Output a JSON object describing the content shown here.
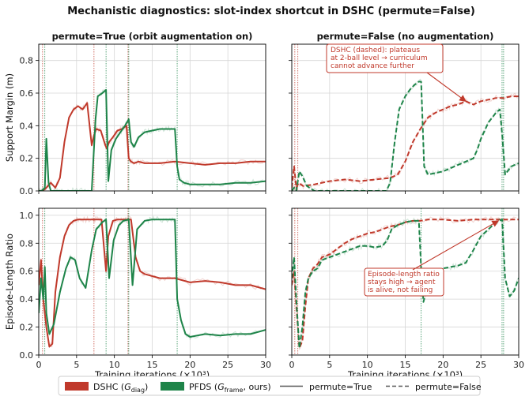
{
  "figure": {
    "suptitle": "Mechanistic diagnostics: slot-index shortcut in DSHC (permute=False)"
  },
  "colors": {
    "dshc": "#c0392b",
    "pfds": "#1e8449"
  },
  "legend": {
    "dshc_name": "DSHC (",
    "dshc_sym": "G",
    "dshc_sub": "diag",
    "dshc_tail": ")",
    "pfds_name": "PFDS (",
    "pfds_sym": "G",
    "pfds_sub": "frame",
    "pfds_tail": ", ours)",
    "solid_label": "permute=True",
    "dashed_label": "permute=False"
  },
  "annotations": {
    "top_right": [
      "DSHC (dashed): plateaus",
      "at 2-ball level → curriculum",
      "cannot advance further"
    ],
    "bottom_right": [
      "Episode-length ratio",
      "stays high → agent",
      "is alive, not failing"
    ]
  },
  "chart_data": [
    {
      "type": "line",
      "id": "tl",
      "title": "permute=True  (orbit augmentation on)",
      "xlabel": "",
      "ylabel": "Support Margin (m)",
      "xlim": [
        0,
        30
      ],
      "ylim": [
        0,
        0.9
      ],
      "xticks": [
        0,
        5,
        10,
        15,
        20,
        25,
        30
      ],
      "yticks": [
        0.0,
        0.2,
        0.4,
        0.6,
        0.8
      ],
      "grid": true,
      "dashed": false,
      "stage_lines": {
        "dshc": [
          0.5,
          7.3,
          11.8
        ],
        "pfds": [
          0.8,
          8.9,
          11.9,
          18.3
        ]
      },
      "series": [
        {
          "name": "DSHC (G_diag)",
          "color_key": "dshc",
          "x": [
            0,
            0.4,
            0.8,
            1.2,
            1.6,
            2.2,
            2.8,
            3.4,
            4.0,
            4.6,
            5.2,
            5.8,
            6.4,
            7.0,
            7.3,
            7.6,
            8.2,
            8.8,
            9.0,
            9.3,
            9.8,
            10.4,
            11.0,
            11.6,
            11.9,
            12.2,
            12.6,
            13.2,
            14,
            16,
            18,
            20,
            22,
            24,
            26,
            28,
            30
          ],
          "y": [
            0.0,
            0.0,
            0.01,
            0.03,
            0.05,
            0.02,
            0.08,
            0.3,
            0.45,
            0.5,
            0.52,
            0.5,
            0.54,
            0.28,
            0.34,
            0.38,
            0.37,
            0.28,
            0.26,
            0.3,
            0.33,
            0.37,
            0.38,
            0.4,
            0.2,
            0.18,
            0.17,
            0.18,
            0.17,
            0.17,
            0.18,
            0.17,
            0.16,
            0.17,
            0.17,
            0.18,
            0.18
          ]
        },
        {
          "name": "PFDS (G_frame, ours)",
          "color_key": "pfds",
          "x": [
            0,
            0.4,
            0.8,
            1.0,
            1.3,
            1.6,
            2.0,
            2.6,
            3.2,
            4,
            5,
            6,
            7,
            7.5,
            7.8,
            8.4,
            8.9,
            9.2,
            9.6,
            10.2,
            10.8,
            11.4,
            11.9,
            12.2,
            12.6,
            13.2,
            14,
            15,
            16,
            17,
            18,
            18.3,
            18.6,
            19.2,
            20,
            22,
            24,
            26,
            28,
            30
          ],
          "y": [
            0.0,
            0.0,
            0.02,
            0.32,
            0.05,
            0.0,
            0.0,
            0.0,
            0.0,
            0.0,
            0.0,
            0.0,
            0.0,
            0.44,
            0.58,
            0.6,
            0.62,
            0.06,
            0.25,
            0.32,
            0.36,
            0.4,
            0.44,
            0.3,
            0.27,
            0.33,
            0.36,
            0.37,
            0.38,
            0.38,
            0.38,
            0.15,
            0.07,
            0.05,
            0.04,
            0.04,
            0.04,
            0.05,
            0.05,
            0.06
          ]
        }
      ]
    },
    {
      "type": "line",
      "id": "tr",
      "title": "permute=False  (no augmentation)",
      "xlabel": "",
      "ylabel": "",
      "xlim": [
        0,
        30
      ],
      "ylim": [
        0,
        0.9
      ],
      "xticks": [
        0,
        5,
        10,
        15,
        20,
        25,
        30
      ],
      "yticks": [
        0.0,
        0.2,
        0.4,
        0.6,
        0.8
      ],
      "grid": true,
      "dashed": true,
      "stage_lines": {
        "dshc": [
          0.4,
          0.8
        ],
        "pfds": [
          27.8,
          28.0
        ]
      },
      "series": [
        {
          "name": "DSHC (G_diag)",
          "color_key": "dshc",
          "x": [
            0,
            0.3,
            0.6,
            0.9,
            1.5,
            3,
            5,
            7,
            9,
            11,
            13,
            14,
            15,
            16,
            17,
            18,
            19,
            20,
            21,
            22,
            23,
            24,
            25,
            26,
            27,
            28,
            29,
            30
          ],
          "y": [
            0.02,
            0.15,
            0.02,
            0.05,
            0.03,
            0.04,
            0.06,
            0.07,
            0.06,
            0.07,
            0.08,
            0.1,
            0.18,
            0.3,
            0.38,
            0.45,
            0.48,
            0.5,
            0.52,
            0.53,
            0.55,
            0.53,
            0.55,
            0.56,
            0.57,
            0.57,
            0.58,
            0.58
          ]
        },
        {
          "name": "PFDS (G_frame, ours)",
          "color_key": "pfds",
          "x": [
            0,
            0.3,
            0.6,
            1.0,
            1.4,
            2,
            3,
            5,
            7,
            9,
            11,
            12.5,
            13,
            13.6,
            14.2,
            15,
            15.6,
            16.2,
            16.8,
            17.1,
            17.5,
            18,
            19,
            20,
            21,
            22,
            23,
            24,
            24.5,
            25,
            26,
            27,
            27.5,
            27.8,
            28.2,
            29,
            30
          ],
          "y": [
            0.0,
            0.02,
            0.0,
            0.12,
            0.09,
            0.03,
            0.0,
            0.0,
            0.0,
            0.0,
            0.0,
            0.0,
            0.05,
            0.3,
            0.5,
            0.58,
            0.62,
            0.65,
            0.67,
            0.67,
            0.15,
            0.1,
            0.11,
            0.12,
            0.14,
            0.16,
            0.18,
            0.2,
            0.25,
            0.32,
            0.42,
            0.48,
            0.5,
            0.35,
            0.1,
            0.15,
            0.17
          ]
        }
      ]
    },
    {
      "type": "line",
      "id": "bl",
      "title": "",
      "xlabel": "Training iterations (×10³)",
      "ylabel": "Episode-Length Ratio",
      "xlim": [
        0,
        30
      ],
      "ylim": [
        0,
        1.05
      ],
      "xticks": [
        0,
        5,
        10,
        15,
        20,
        25,
        30
      ],
      "yticks": [
        0.0,
        0.2,
        0.4,
        0.6,
        0.8,
        1.0
      ],
      "grid": true,
      "dashed": false,
      "stage_lines": {
        "dshc": [
          0.5,
          7.3,
          11.8
        ],
        "pfds": [
          0.8,
          8.9,
          11.9,
          18.3
        ]
      },
      "series": [
        {
          "name": "DSHC (G_diag)",
          "color_key": "dshc",
          "x": [
            0,
            0.3,
            0.6,
            1.0,
            1.4,
            1.8,
            2.2,
            2.8,
            3.4,
            4.0,
            4.6,
            5.2,
            6,
            7.3,
            7.7,
            8.3,
            8.9,
            9.2,
            9.8,
            10.4,
            11.0,
            11.8,
            12.2,
            12.8,
            13.4,
            14,
            16,
            18,
            20,
            22,
            24,
            26,
            28,
            30
          ],
          "y": [
            0.5,
            0.68,
            0.4,
            0.2,
            0.06,
            0.08,
            0.45,
            0.7,
            0.85,
            0.93,
            0.96,
            0.97,
            0.97,
            0.97,
            0.97,
            0.97,
            0.6,
            0.85,
            0.96,
            0.97,
            0.97,
            0.97,
            0.97,
            0.7,
            0.6,
            0.58,
            0.55,
            0.55,
            0.52,
            0.53,
            0.52,
            0.5,
            0.5,
            0.47
          ]
        },
        {
          "name": "PFDS (G_frame, ours)",
          "color_key": "pfds",
          "x": [
            0,
            0.3,
            0.6,
            0.8,
            1.0,
            1.4,
            2.0,
            2.8,
            3.6,
            4.2,
            4.8,
            5.4,
            6.2,
            7.0,
            7.6,
            8.4,
            8.9,
            9.3,
            9.9,
            10.6,
            11.2,
            11.9,
            12.4,
            13,
            14,
            15,
            16,
            17,
            18,
            18.3,
            18.8,
            19.4,
            20,
            22,
            24,
            26,
            28,
            30
          ],
          "y": [
            0.3,
            0.55,
            0.4,
            0.63,
            0.3,
            0.15,
            0.22,
            0.45,
            0.62,
            0.7,
            0.68,
            0.55,
            0.48,
            0.75,
            0.9,
            0.95,
            0.97,
            0.55,
            0.82,
            0.93,
            0.96,
            0.97,
            0.5,
            0.9,
            0.96,
            0.97,
            0.97,
            0.97,
            0.97,
            0.4,
            0.25,
            0.15,
            0.13,
            0.15,
            0.14,
            0.15,
            0.15,
            0.18
          ]
        }
      ]
    },
    {
      "type": "line",
      "id": "br",
      "title": "",
      "xlabel": "Training iterations (×10³)",
      "ylabel": "",
      "xlim": [
        0,
        30
      ],
      "ylim": [
        0,
        1.05
      ],
      "xticks": [
        0,
        5,
        10,
        15,
        20,
        25,
        30
      ],
      "yticks": [
        0.0,
        0.2,
        0.4,
        0.6,
        0.8,
        1.0
      ],
      "grid": true,
      "dashed": true,
      "stage_lines": {
        "dshc": [
          0.4,
          0.8
        ],
        "pfds": [
          17.1,
          27.8,
          28.0
        ]
      },
      "series": [
        {
          "name": "DSHC (G_diag)",
          "color_key": "dshc",
          "x": [
            0,
            0.3,
            0.6,
            1.0,
            1.4,
            1.8,
            2.2,
            2.8,
            3.4,
            4,
            5,
            6,
            7,
            8,
            9,
            10,
            11,
            12,
            13,
            14,
            15,
            16,
            17,
            18,
            20,
            22,
            24,
            26,
            28,
            30
          ],
          "y": [
            0.5,
            0.6,
            0.35,
            0.05,
            0.1,
            0.35,
            0.55,
            0.62,
            0.65,
            0.7,
            0.72,
            0.76,
            0.8,
            0.83,
            0.85,
            0.87,
            0.88,
            0.9,
            0.92,
            0.93,
            0.95,
            0.96,
            0.96,
            0.97,
            0.97,
            0.96,
            0.97,
            0.97,
            0.97,
            0.97
          ]
        },
        {
          "name": "PFDS (G_frame, ours)",
          "color_key": "pfds",
          "x": [
            0,
            0.3,
            0.6,
            1.0,
            1.4,
            1.8,
            2.2,
            2.8,
            3.4,
            4,
            5,
            6,
            7,
            8,
            9,
            10,
            11,
            12,
            12.6,
            13.2,
            14,
            15,
            16,
            16.8,
            17.1,
            17.4,
            17.8,
            18.2,
            19,
            20,
            21,
            22,
            23,
            24,
            25,
            26,
            27,
            27.8,
            28.2,
            28.8,
            29.4,
            30
          ],
          "y": [
            0.55,
            0.7,
            0.4,
            0.05,
            0.2,
            0.45,
            0.55,
            0.6,
            0.62,
            0.68,
            0.7,
            0.72,
            0.74,
            0.76,
            0.78,
            0.78,
            0.77,
            0.78,
            0.82,
            0.9,
            0.93,
            0.95,
            0.96,
            0.96,
            0.62,
            0.38,
            0.46,
            0.5,
            0.6,
            0.62,
            0.63,
            0.64,
            0.66,
            0.75,
            0.85,
            0.9,
            0.95,
            0.97,
            0.55,
            0.42,
            0.46,
            0.55
          ]
        }
      ]
    }
  ]
}
